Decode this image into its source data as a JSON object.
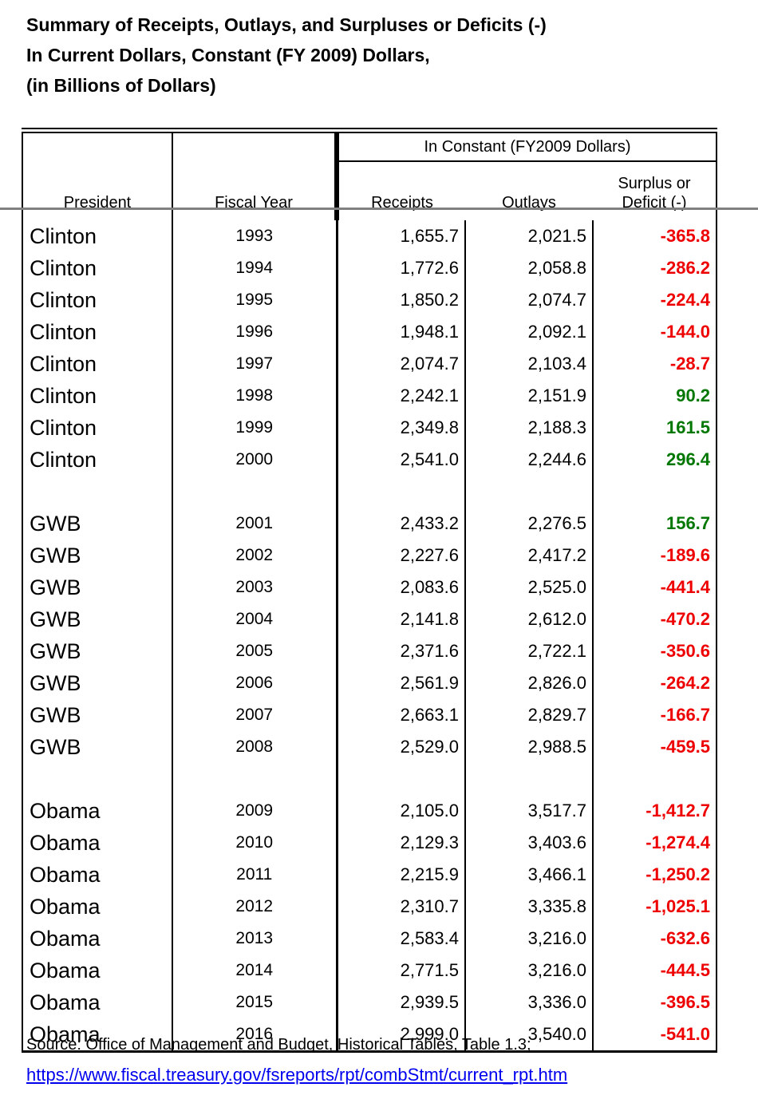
{
  "title": {
    "line1": "Summary of Receipts, Outlays, and Surpluses or Deficits (-)",
    "line2": "In Current Dollars, Constant (FY 2009) Dollars,",
    "line3": "(in Billions of Dollars)"
  },
  "table": {
    "header": {
      "president": "President",
      "fiscal_year": "Fiscal Year",
      "group": "In Constant (FY2009 Dollars)",
      "receipts": "Receipts",
      "outlays": "Outlays",
      "surplus_line1": "Surplus or",
      "surplus_line2": "Deficit (-)"
    },
    "rows": [
      {
        "president": "Clinton",
        "year": "1993",
        "receipts": "1,655.7",
        "outlays": "2,021.5",
        "balance": "-365.8"
      },
      {
        "president": "Clinton",
        "year": "1994",
        "receipts": "1,772.6",
        "outlays": "2,058.8",
        "balance": "-286.2"
      },
      {
        "president": "Clinton",
        "year": "1995",
        "receipts": "1,850.2",
        "outlays": "2,074.7",
        "balance": "-224.4"
      },
      {
        "president": "Clinton",
        "year": "1996",
        "receipts": "1,948.1",
        "outlays": "2,092.1",
        "balance": "-144.0"
      },
      {
        "president": "Clinton",
        "year": "1997",
        "receipts": "2,074.7",
        "outlays": "2,103.4",
        "balance": "-28.7"
      },
      {
        "president": "Clinton",
        "year": "1998",
        "receipts": "2,242.1",
        "outlays": "2,151.9",
        "balance": "90.2"
      },
      {
        "president": "Clinton",
        "year": "1999",
        "receipts": "2,349.8",
        "outlays": "2,188.3",
        "balance": "161.5"
      },
      {
        "president": "Clinton",
        "year": "2000",
        "receipts": "2,541.0",
        "outlays": "2,244.6",
        "balance": "296.4"
      },
      {
        "separator": true
      },
      {
        "president": "GWB",
        "year": "2001",
        "receipts": "2,433.2",
        "outlays": "2,276.5",
        "balance": "156.7"
      },
      {
        "president": "GWB",
        "year": "2002",
        "receipts": "2,227.6",
        "outlays": "2,417.2",
        "balance": "-189.6"
      },
      {
        "president": "GWB",
        "year": "2003",
        "receipts": "2,083.6",
        "outlays": "2,525.0",
        "balance": "-441.4"
      },
      {
        "president": "GWB",
        "year": "2004",
        "receipts": "2,141.8",
        "outlays": "2,612.0",
        "balance": "-470.2"
      },
      {
        "president": "GWB",
        "year": "2005",
        "receipts": "2,371.6",
        "outlays": "2,722.1",
        "balance": "-350.6"
      },
      {
        "president": "GWB",
        "year": "2006",
        "receipts": "2,561.9",
        "outlays": "2,826.0",
        "balance": "-264.2"
      },
      {
        "president": "GWB",
        "year": "2007",
        "receipts": "2,663.1",
        "outlays": "2,829.7",
        "balance": "-166.7"
      },
      {
        "president": "GWB",
        "year": "2008",
        "receipts": "2,529.0",
        "outlays": "2,988.5",
        "balance": "-459.5"
      },
      {
        "separator": true
      },
      {
        "president": "Obama",
        "year": "2009",
        "receipts": "2,105.0",
        "outlays": "3,517.7",
        "balance": "-1,412.7"
      },
      {
        "president": "Obama",
        "year": "2010",
        "receipts": "2,129.3",
        "outlays": "3,403.6",
        "balance": "-1,274.4"
      },
      {
        "president": "Obama",
        "year": "2011",
        "receipts": "2,215.9",
        "outlays": "3,466.1",
        "balance": "-1,250.2"
      },
      {
        "president": "Obama",
        "year": "2012",
        "receipts": "2,310.7",
        "outlays": "3,335.8",
        "balance": "-1,025.1"
      },
      {
        "president": "Obama",
        "year": "2013",
        "receipts": "2,583.4",
        "outlays": "3,216.0",
        "balance": "-632.6"
      },
      {
        "president": "Obama",
        "year": "2014",
        "receipts": "2,771.5",
        "outlays": "3,216.0",
        "balance": "-444.5"
      },
      {
        "president": "Obama",
        "year": "2015",
        "receipts": "2,939.5",
        "outlays": "3,336.0",
        "balance": "-396.5"
      },
      {
        "president": "Obama",
        "year": "2016",
        "receipts": "2,999.0",
        "outlays": "3,540.0",
        "balance": "-541.0"
      }
    ]
  },
  "colors": {
    "deficit_red": "#ee0000",
    "surplus_green": "#007700",
    "divider_gray": "#808080",
    "link_blue": "#0000ee"
  },
  "footer": {
    "source": "Source: Office of Management and Budget, Historical Tables, Table 1.3;",
    "link": "https://www.fiscal.treasury.gov/fsreports/rpt/combStmt/current_rpt.htm"
  }
}
